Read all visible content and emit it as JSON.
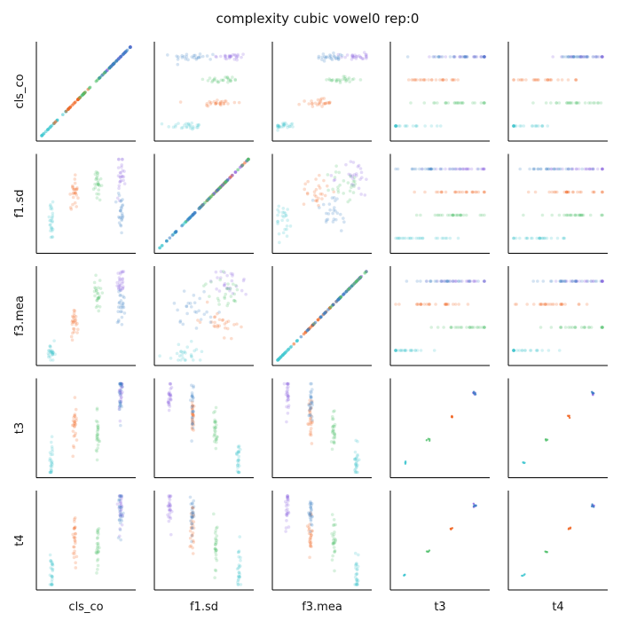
{
  "chart_data": {
    "type": "scatter",
    "title": "complexity cubic vowel0 rep:0",
    "variables": [
      "cls_co",
      "f1.sd",
      "f3.mea",
      "t3",
      "t4"
    ],
    "xlabels": [
      "cls_co",
      "f1.sd",
      "f3.mea",
      "t3",
      "t4"
    ],
    "ylabels": [
      "cls_co",
      "f1.sd",
      "f3.mea",
      "t3",
      "t4"
    ],
    "grid": false,
    "legend": "none",
    "discrete_levels": 4,
    "series": [
      {
        "color": "#3ec6cf",
        "level": [
          0,
          3,
          0,
          0,
          0
        ],
        "center": [
          0.12,
          0.3,
          0.08,
          0.05,
          0.05
        ],
        "spread": [
          0.06,
          0.1,
          0.06,
          0.02,
          0.02
        ]
      },
      {
        "color": "#f0621e",
        "level": [
          1,
          1,
          1,
          2,
          2
        ],
        "center": [
          0.4,
          0.65,
          0.45,
          0.55,
          0.55
        ],
        "spread": [
          0.1,
          0.1,
          0.08,
          0.05,
          0.05
        ]
      },
      {
        "color": "#8a5ee0",
        "level": [
          3,
          0,
          2,
          3,
          3
        ],
        "center": [
          0.85,
          0.78,
          0.85,
          0.95,
          0.95
        ],
        "spread": [
          0.08,
          0.1,
          0.08,
          0.05,
          0.05
        ]
      },
      {
        "color": "#4fbf6a",
        "level": [
          2,
          2,
          3,
          1,
          1
        ],
        "center": [
          0.65,
          0.7,
          0.75,
          0.35,
          0.35
        ],
        "spread": [
          0.1,
          0.1,
          0.08,
          0.05,
          0.05
        ]
      },
      {
        "color": "#3a7fc4",
        "level": [
          3,
          1,
          2,
          3,
          3
        ],
        "center": [
          0.7,
          0.4,
          0.6,
          0.8,
          0.8
        ],
        "spread": [
          0.12,
          0.12,
          0.1,
          0.05,
          0.05
        ]
      }
    ]
  }
}
